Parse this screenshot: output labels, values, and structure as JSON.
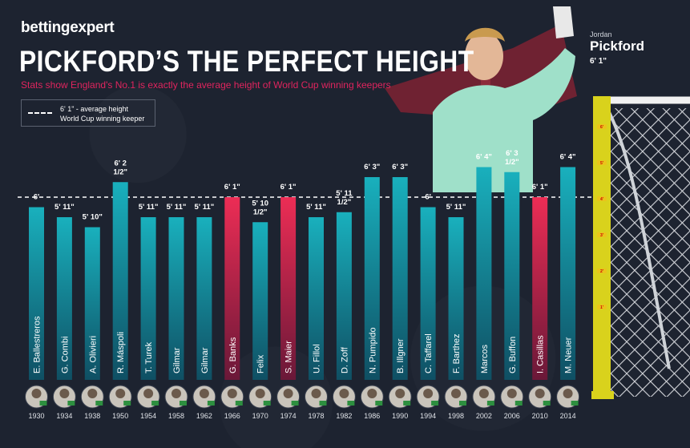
{
  "brand": "bettingexpert",
  "title": "PICKFORD’S THE PERFECT HEIGHT",
  "subtitle": "Stats show England's No.1 is exactly the average height of World Cup winning keepers",
  "legend": {
    "text": "6' 1\" - average height\nWorld Cup winning keeper"
  },
  "player": {
    "first": "Jordan",
    "last": "Pickford",
    "height": "6' 1\""
  },
  "ruler_marks": [
    "6'",
    "5'",
    "4'",
    "3'",
    "2'",
    "1'"
  ],
  "colors": {
    "teal": "#17a6b5",
    "pink": "#e3284e",
    "background": "#1d2330",
    "ruler": "#d9d21c"
  },
  "chart_data": {
    "type": "bar",
    "y_unit": "inches",
    "reference_line": 73,
    "categories": [
      "1930",
      "1934",
      "1938",
      "1950",
      "1954",
      "1958",
      "1962",
      "1966",
      "1970",
      "1974",
      "1978",
      "1982",
      "1986",
      "1990",
      "1994",
      "1998",
      "2002",
      "2006",
      "2010",
      "2014"
    ],
    "names": [
      "E. Ballestreros",
      "G. Combi",
      "A. Olivieri",
      "R. Máspoli",
      "T. Turek",
      "Gilmar",
      "Gilmar",
      "G. Banks",
      "Felix",
      "S. Maier",
      "U. Fillol",
      "D. Zoff",
      "N. Pumpido",
      "B. Illgner",
      "C. Taffarel",
      "F. Barthez",
      "Marcos",
      "G. Buffon",
      "I. Casillas",
      "M. Neuer"
    ],
    "values": [
      72,
      71,
      70,
      74.5,
      71,
      71,
      71,
      73,
      70.5,
      73,
      71,
      71.5,
      75,
      75,
      72,
      71,
      76,
      75.5,
      73,
      76
    ],
    "labels": [
      "6'",
      "5' 11\"",
      "5' 10\"",
      "6' 2\n1/2\"",
      "5' 11\"",
      "5' 11\"",
      "5' 11\"",
      "6' 1\"",
      "5' 10\n1/2\"",
      "6' 1\"",
      "5' 11\"",
      "5' 11\n1/2\"",
      "6' 3\"",
      "6' 3\"",
      "6'",
      "5' 11\"",
      "6' 4\"",
      "6' 3\n1/2\"",
      "6' 1\"",
      "6' 4\""
    ]
  }
}
